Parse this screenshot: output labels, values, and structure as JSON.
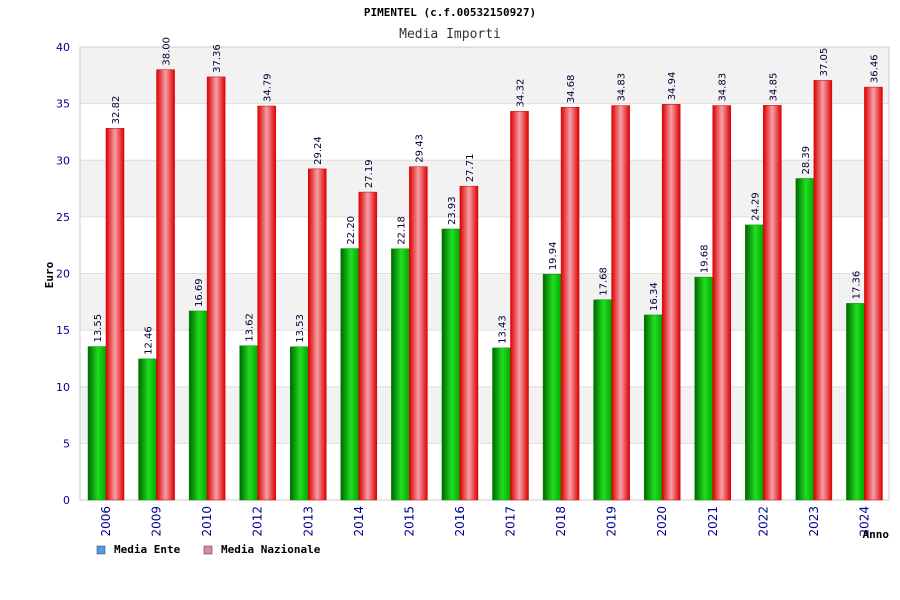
{
  "chart_data": {
    "type": "bar",
    "title": "PIMENTEL (c.f.00532150927)",
    "subtitle": "Media Importi",
    "xlabel": "Anno",
    "ylabel": "Euro",
    "ylim": [
      0,
      40
    ],
    "yticks": [
      0,
      5,
      10,
      15,
      20,
      25,
      30,
      35,
      40
    ],
    "grid": true,
    "legend_position": "bottom-left",
    "categories": [
      "2006",
      "2009",
      "2010",
      "2012",
      "2013",
      "2014",
      "2015",
      "2016",
      "2017",
      "2018",
      "2019",
      "2020",
      "2021",
      "2022",
      "2023",
      "2024"
    ],
    "series": [
      {
        "name": "Media Ente",
        "color": "#00cc00",
        "legend_color": "#5599ee",
        "values": [
          13.55,
          12.46,
          16.69,
          13.62,
          13.53,
          22.2,
          22.18,
          23.93,
          13.43,
          19.94,
          17.68,
          16.34,
          19.68,
          24.29,
          28.39,
          17.36
        ],
        "labels": [
          "13.55",
          "12.46",
          "16.69",
          "13.62",
          "13.53",
          "22.20",
          "22.18",
          "23.93",
          "13.43",
          "19.94",
          "17.68",
          "16.34",
          "19.68",
          "24.29",
          "28.39",
          "17.36"
        ]
      },
      {
        "name": "Media Nazionale",
        "color": "#ee1111",
        "legend_color": "#dd88aa",
        "values": [
          32.82,
          38.0,
          37.36,
          34.79,
          29.24,
          27.19,
          29.43,
          27.71,
          34.32,
          34.68,
          34.83,
          34.94,
          34.83,
          34.85,
          37.05,
          36.46
        ],
        "labels": [
          "32.82",
          "38.00",
          "37.36",
          "34.79",
          "29.24",
          "27.19",
          "29.43",
          "27.71",
          "34.32",
          "34.68",
          "34.83",
          "34.94",
          "34.83",
          "34.85",
          "37.05",
          "36.46"
        ]
      }
    ]
  }
}
